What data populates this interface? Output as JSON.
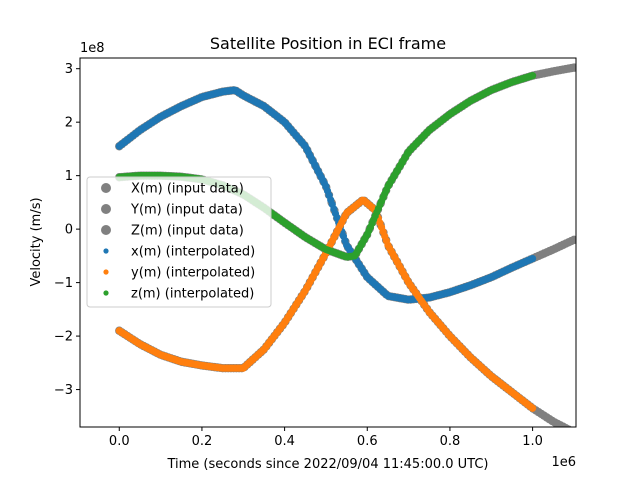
{
  "chart_data": {
    "type": "scatter",
    "title": "Satellite Position in ECI frame",
    "xlabel": "Time (seconds since 2022/09/04 11:45:00.0 UTC)",
    "ylabel": "Velocity (m/s)",
    "x_multiplier_label": "1e6",
    "y_multiplier_label": "1e8",
    "xlim": [
      -0.095,
      1.105
    ],
    "ylim": [
      -3.7,
      3.2
    ],
    "xticks": [
      0.0,
      0.2,
      0.4,
      0.6,
      0.8,
      1.0
    ],
    "xtick_labels": [
      "0.0",
      "0.2",
      "0.4",
      "0.6",
      "0.8",
      "1.0"
    ],
    "yticks": [
      -3,
      -2,
      -1,
      0,
      1,
      2,
      3
    ],
    "ytick_labels": [
      "−3",
      "−2",
      "−1",
      "0",
      "1",
      "2",
      "3"
    ],
    "grid": false,
    "legend": {
      "placement": "center-left",
      "entries": [
        {
          "label": "X(m) (input data)",
          "color": "#808080",
          "marker": "large"
        },
        {
          "label": "Y(m) (input data)",
          "color": "#808080",
          "marker": "large"
        },
        {
          "label": "Z(m) (input data)",
          "color": "#808080",
          "marker": "large"
        },
        {
          "label": "x(m) (interpolated)",
          "color": "#1f77b4",
          "marker": "small"
        },
        {
          "label": "y(m) (interpolated)",
          "color": "#ff7f0e",
          "marker": "small"
        },
        {
          "label": "z(m) (interpolated)",
          "color": "#2ca02c",
          "marker": "small"
        }
      ]
    },
    "interpolated_range": [
      0.0,
      1.0
    ],
    "input_range": [
      0.0,
      1.12
    ],
    "series": [
      {
        "color": "#1f77b4",
        "x": [
          0.0,
          0.05,
          0.1,
          0.15,
          0.2,
          0.25,
          0.28,
          0.3,
          0.35,
          0.4,
          0.45,
          0.5,
          0.55,
          0.6,
          0.65,
          0.7,
          0.75,
          0.8,
          0.85,
          0.9,
          0.95,
          1.0,
          1.05,
          1.1
        ],
        "values": [
          1.55,
          1.85,
          2.1,
          2.3,
          2.47,
          2.57,
          2.6,
          2.5,
          2.3,
          2.0,
          1.55,
          0.8,
          -0.3,
          -0.9,
          -1.25,
          -1.32,
          -1.28,
          -1.18,
          -1.05,
          -0.9,
          -0.72,
          -0.55,
          -0.38,
          -0.2
        ]
      },
      {
        "color": "#ff7f0e",
        "x": [
          0.0,
          0.05,
          0.1,
          0.15,
          0.2,
          0.25,
          0.3,
          0.35,
          0.4,
          0.45,
          0.5,
          0.55,
          0.59,
          0.62,
          0.65,
          0.7,
          0.75,
          0.8,
          0.85,
          0.9,
          0.95,
          1.0,
          1.05,
          1.1
        ],
        "values": [
          -1.9,
          -2.15,
          -2.35,
          -2.48,
          -2.55,
          -2.6,
          -2.6,
          -2.25,
          -1.75,
          -1.15,
          -0.45,
          0.3,
          0.55,
          0.35,
          -0.3,
          -1.0,
          -1.55,
          -2.0,
          -2.4,
          -2.75,
          -3.05,
          -3.35,
          -3.6,
          -3.8
        ]
      },
      {
        "color": "#2ca02c",
        "x": [
          0.0,
          0.05,
          0.1,
          0.15,
          0.2,
          0.25,
          0.3,
          0.35,
          0.4,
          0.45,
          0.5,
          0.55,
          0.57,
          0.6,
          0.65,
          0.7,
          0.75,
          0.8,
          0.85,
          0.9,
          0.95,
          1.0,
          1.05,
          1.1
        ],
        "values": [
          0.97,
          1.0,
          1.0,
          0.98,
          0.93,
          0.82,
          0.65,
          0.4,
          0.12,
          -0.15,
          -0.38,
          -0.52,
          -0.5,
          -0.1,
          0.8,
          1.45,
          1.85,
          2.15,
          2.4,
          2.6,
          2.75,
          2.87,
          2.95,
          3.02
        ]
      }
    ]
  }
}
